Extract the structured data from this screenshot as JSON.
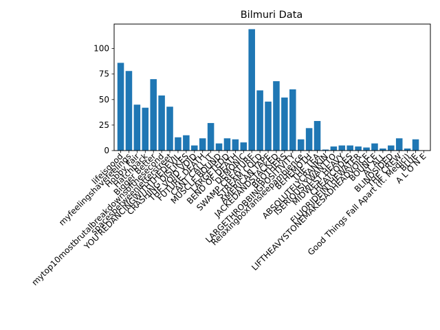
{
  "chart_data": {
    "type": "bar",
    "title": "Bilmuri Data",
    "xlabel": "",
    "ylabel": "",
    "ylim": [
      0,
      124
    ],
    "yticks": [
      0,
      25,
      50,
      75,
      100
    ],
    "bar_color": "#1f77b4",
    "grid": false,
    "categories": [
      "lifeisgood",
      "myfeelingshavefeelings",
      "Hobby Fair",
      "Hatchback",
      "Bigger Better",
      "mytop10mostbrutalbreakdownsofthesecond",
      "spacesbetweenletterstreet",
      "YOU'REDANCINGWITHTHEDEVIL",
      "CRASHING DISLIKES",
      "THE VOID VOID",
      "FUTURE DEATH",
      "CANT CALL IT",
      "MUSCLE BOUND",
      "LARGETEDD",
      "BEND OF DEATH",
      "DEMONIC",
      "SWAMP CREATURE",
      "STREAM COLD",
      "AMERICAN TAPE",
      "JACKEDANDSTACKED",
      "BROTHERS",
      "LARGETHROBBINGPOSITIVITY",
      "Relaxingboxfansleepambience",
      "BEHEMOTH",
      "THE TEA",
      "ABSOLUTELYCRANKIN",
      "ISERIOUSLYWANTTO",
      "MIDWEST HEAVY",
      "CHEATCODES",
      "FLUORIDEINTHEWATER",
      "LIFTHEAVYSTONEMAKESADHEADVOICE",
      "BOUNCE",
      "AT ALL",
      "BLINDSIDED",
      "THE CREW",
      "Good Things Fall Apart (ft. Medici)",
      "BLUE",
      "A L O N E"
    ],
    "values": [
      86,
      78,
      45,
      42,
      70,
      54,
      43,
      13,
      15,
      5,
      12,
      27,
      7,
      12,
      11,
      8,
      119,
      59,
      48,
      68,
      52,
      60,
      11,
      22,
      29,
      1,
      4,
      5,
      5,
      4,
      3,
      7,
      2,
      5,
      12,
      2,
      11,
      0
    ]
  }
}
